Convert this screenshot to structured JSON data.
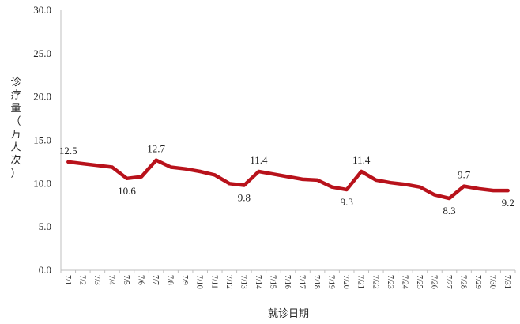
{
  "chart_data": {
    "type": "line",
    "title": "",
    "xlabel": "就诊日期",
    "ylabel": "诊疗量（万人次）",
    "ylim": [
      0,
      30
    ],
    "yticks": [
      "0.0",
      "5.0",
      "10.0",
      "15.0",
      "20.0",
      "25.0",
      "30.0"
    ],
    "grid": false,
    "legend": "none",
    "line_color": "#b8121b",
    "categories": [
      "7/1",
      "7/2",
      "7/3",
      "7/4",
      "7/5",
      "7/6",
      "7/7",
      "7/8",
      "7/9",
      "7/10",
      "7/11",
      "7/12",
      "7/13",
      "7/14",
      "7/15",
      "7/16",
      "7/17",
      "7/18",
      "7/19",
      "7/20",
      "7/21",
      "7/22",
      "7/23",
      "7/24",
      "7/25",
      "7/26",
      "7/27",
      "7/28",
      "7/29",
      "7/30",
      "7/31"
    ],
    "values": [
      12.5,
      12.3,
      12.1,
      11.9,
      10.6,
      10.8,
      12.7,
      11.9,
      11.7,
      11.4,
      11.0,
      10.0,
      9.8,
      11.4,
      11.1,
      10.8,
      10.5,
      10.4,
      9.6,
      9.3,
      11.4,
      10.4,
      10.1,
      9.9,
      9.6,
      8.7,
      8.3,
      9.7,
      9.4,
      9.2,
      9.2
    ],
    "data_labels": [
      {
        "index": 0,
        "text": "12.5",
        "pos": "above"
      },
      {
        "index": 4,
        "text": "10.6",
        "pos": "below"
      },
      {
        "index": 6,
        "text": "12.7",
        "pos": "above"
      },
      {
        "index": 12,
        "text": "9.8",
        "pos": "below"
      },
      {
        "index": 13,
        "text": "11.4",
        "pos": "above"
      },
      {
        "index": 19,
        "text": "9.3",
        "pos": "below"
      },
      {
        "index": 20,
        "text": "11.4",
        "pos": "above"
      },
      {
        "index": 26,
        "text": "8.3",
        "pos": "below"
      },
      {
        "index": 27,
        "text": "9.7",
        "pos": "above"
      },
      {
        "index": 30,
        "text": "9.2",
        "pos": "below"
      }
    ]
  }
}
